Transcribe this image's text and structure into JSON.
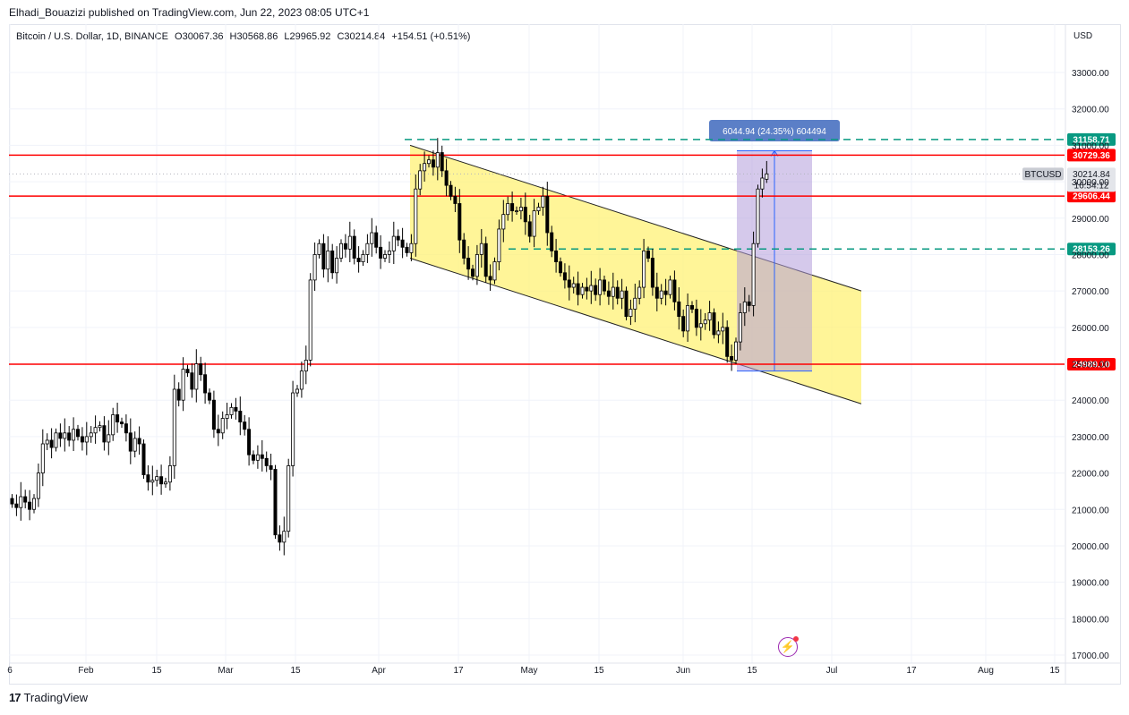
{
  "publisher": "Elhadi_Bouazizi published on TradingView.com, Jun 22, 2023 08:05 UTC+1",
  "header": {
    "symbol": "Bitcoin / U.S. Dollar, 1D, BINANCE",
    "open": "O30067.36",
    "high": "H30568.86",
    "low": "L29965.92",
    "close": "C30214.84",
    "change": "+154.51 (+0.51%)"
  },
  "currency": "USD",
  "footer": {
    "brand": "TradingView",
    "logo": "17"
  },
  "colors": {
    "bull": "#ffffff",
    "bear": "#000000",
    "level": "#ff0000",
    "dashed": "#089981",
    "channel": "#fff176",
    "range": "#b39ddb",
    "measure_box": "#5b7fc7"
  },
  "chart_data": {
    "type": "candlestick",
    "ylim": [
      17000,
      34000
    ],
    "y_ticks": [
      "33000.00",
      "32000.00",
      "31000.00",
      "30000.00",
      "29000.00",
      "28000.00",
      "27000.00",
      "26000.00",
      "25000.00",
      "24000.00",
      "23000.00",
      "22000.00",
      "21000.00",
      "20000.00",
      "19000.00",
      "18000.00",
      "17000.00"
    ],
    "x_tick_labels": [
      "6",
      "Feb",
      "15",
      "Mar",
      "15",
      "Apr",
      "17",
      "May",
      "15",
      "Jun",
      "15",
      "Jul",
      "17",
      "Aug",
      "15"
    ],
    "price_levels": [
      {
        "label": "30729.36",
        "value": 30729.36,
        "style": "solid",
        "color": "#ff0000"
      },
      {
        "label": "29606.44",
        "value": 29606.44,
        "style": "solid",
        "color": "#ff0000"
      },
      {
        "label": "24989.10",
        "value": 24989.1,
        "style": "solid",
        "color": "#ff0000"
      },
      {
        "label": "31158.71",
        "value": 31158.71,
        "style": "dashed",
        "color": "#089981"
      },
      {
        "label": "28153.26",
        "value": 28153.26,
        "style": "dashed",
        "color": "#089981"
      }
    ],
    "current_price": {
      "symbol": "BTCUSD",
      "price": "30214.84",
      "countdown": "16:54:12"
    },
    "measurement": {
      "label": "6044.94 (24.35%) 604494",
      "from": 24800,
      "to": 30850
    },
    "channel": {
      "upper": [
        31000,
        27000
      ],
      "lower": [
        27900,
        23900
      ]
    },
    "closes": [
      21150,
      21050,
      21350,
      21200,
      21000,
      21300,
      22000,
      22800,
      22900,
      22700,
      23100,
      22950,
      23100,
      22900,
      23200,
      23000,
      22850,
      23000,
      23100,
      23250,
      23300,
      22850,
      23050,
      23600,
      23400,
      23350,
      23100,
      22600,
      22950,
      22800,
      21950,
      21750,
      21800,
      21900,
      21700,
      21750,
      22200,
      24300,
      24000,
      24850,
      24750,
      24300,
      25000,
      24700,
      24200,
      24000,
      23200,
      23100,
      23500,
      23600,
      23800,
      23700,
      23400,
      23200,
      22500,
      22350,
      22500,
      22400,
      22200,
      22100,
      20300,
      20100,
      20400,
      22200,
      24200,
      24300,
      24800,
      25100,
      27300,
      28000,
      28300,
      27600,
      28100,
      27500,
      27900,
      28300,
      28150,
      28500,
      27900,
      27800,
      28000,
      28300,
      28600,
      28200,
      27900,
      28000,
      28100,
      28500,
      28400,
      28200,
      28050,
      28300,
      29800,
      30300,
      30500,
      30600,
      30400,
      30800,
      30300,
      29900,
      29600,
      29400,
      28400,
      27900,
      27600,
      27400,
      28000,
      28300,
      27400,
      27300,
      27800,
      28700,
      29100,
      29400,
      29200,
      29200,
      29300,
      28900,
      28500,
      29200,
      29300,
      29600,
      28600,
      28100,
      27800,
      27500,
      27300,
      27100,
      27200,
      26900,
      27100,
      27000,
      27150,
      26900,
      27300,
      27000,
      26850,
      27100,
      26800,
      27000,
      26300,
      26500,
      26800,
      27100,
      28100,
      27900,
      27100,
      26800,
      27000,
      26900,
      27300,
      26700,
      26300,
      25900,
      26600,
      26500,
      26000,
      26100,
      26200,
      26400,
      25800,
      25900,
      26000,
      25200,
      25100,
      25600,
      26400,
      26700,
      26600,
      28300,
      29800,
      30100,
      30214.84
    ],
    "last_bar": {
      "open": 30067.36,
      "high": 30568.86,
      "low": 29965.92,
      "close": 30214.84
    }
  }
}
